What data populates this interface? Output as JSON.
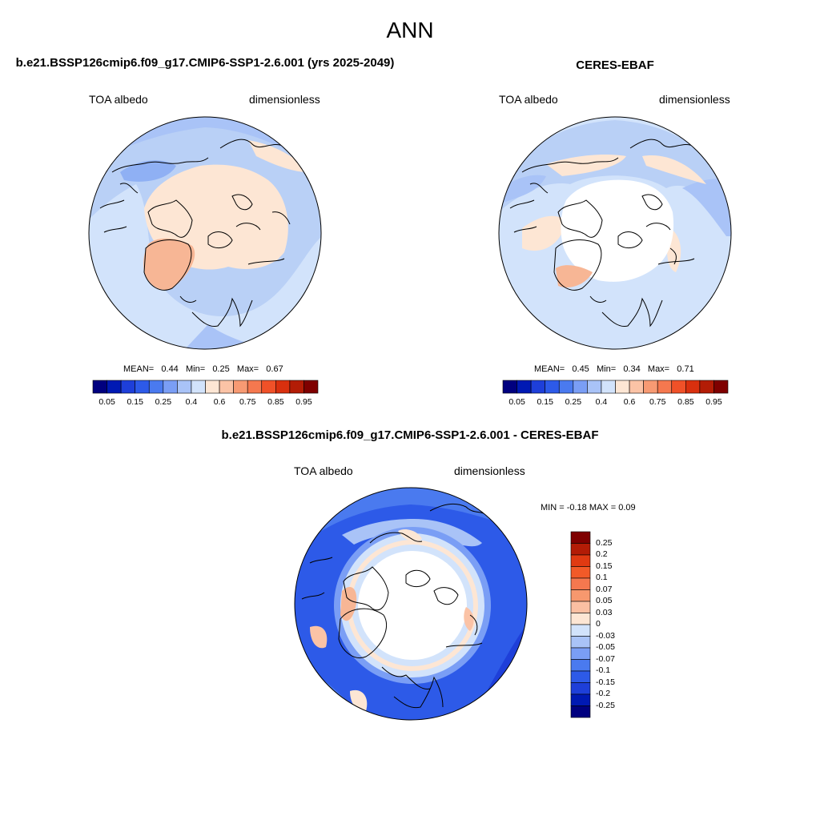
{
  "title": "ANN",
  "panels": [
    {
      "id": "model",
      "title": "b.e21.BSSP126cmip6.f09_g17.CMIP6-SSP1-2.6.001 (yrs 2025-2049)",
      "left_label": "TOA albedo",
      "right_label": "dimensionless",
      "stats": {
        "mean_label": "MEAN=",
        "mean": "0.44",
        "min_label": "Min=",
        "min": "0.25",
        "max_label": "Max=",
        "max": "0.67"
      },
      "summary": {
        "mean": 0.44,
        "min": 0.25,
        "max": 0.67
      }
    },
    {
      "id": "obs",
      "title": "CERES-EBAF",
      "left_label": "TOA albedo",
      "right_label": "dimensionless",
      "stats": {
        "mean_label": "MEAN=",
        "mean": "0.45",
        "min_label": "Min=",
        "min": "0.34",
        "max_label": "Max=",
        "max": "0.71"
      },
      "summary": {
        "mean": 0.45,
        "min": 0.34,
        "max": 0.71
      }
    },
    {
      "id": "diff",
      "title": "b.e21.BSSP126cmip6.f09_g17.CMIP6-SSP1-2.6.001 - CERES-EBAF",
      "left_label": "TOA albedo",
      "right_label": "dimensionless",
      "stats_text": "MIN =  -0.18 MAX =   0.09",
      "summary": {
        "min": -0.18,
        "max": 0.09
      }
    }
  ],
  "colorbar_top": {
    "colors": [
      "#00007f",
      "#0019b3",
      "#1e3fd9",
      "#2d5ae8",
      "#4a7aef",
      "#7a9ef5",
      "#a9c3f7",
      "#d2e3fb",
      "#fde6d4",
      "#fbc3a6",
      "#f79a73",
      "#f5784f",
      "#f05128",
      "#d9300e",
      "#b31c06",
      "#7f0000"
    ],
    "tick_labels": [
      "0.05",
      "0.15",
      "0.25",
      "0.4",
      "0.6",
      "0.75",
      "0.85",
      "0.95"
    ]
  },
  "colorbar_diff": {
    "colors": [
      "#7f0000",
      "#b31c06",
      "#e03a12",
      "#f25a28",
      "#f5784f",
      "#f7986e",
      "#fbbfa2",
      "#fde6d4",
      "#d2e3fb",
      "#a9c3f7",
      "#7a9ef5",
      "#4a7aef",
      "#2d5ae8",
      "#1e3fd9",
      "#0019b3",
      "#00007f"
    ],
    "tick_labels": [
      "0.25",
      "0.2",
      "0.15",
      "0.1",
      "0.07",
      "0.05",
      "0.03",
      "0",
      "-0.03",
      "-0.05",
      "-0.07",
      "-0.1",
      "-0.15",
      "-0.2",
      "-0.25"
    ]
  }
}
